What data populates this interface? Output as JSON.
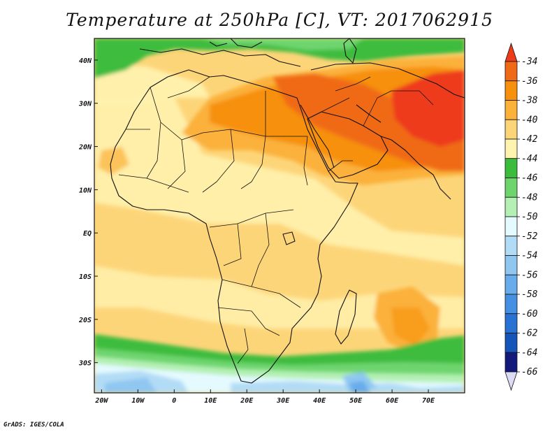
{
  "title": "Temperature at 250hPa [C], VT: 2017062915",
  "credit": "GrADS: IGES/COLA",
  "map": {
    "lon_range": [
      -22,
      80
    ],
    "lat_range": [
      -37,
      45
    ],
    "lon_ticks": [
      {
        "lon": -20,
        "label": "20W"
      },
      {
        "lon": -10,
        "label": "10W"
      },
      {
        "lon": 0,
        "label": "0"
      },
      {
        "lon": 10,
        "label": "10E"
      },
      {
        "lon": 20,
        "label": "20E"
      },
      {
        "lon": 30,
        "label": "30E"
      },
      {
        "lon": 40,
        "label": "40E"
      },
      {
        "lon": 50,
        "label": "50E"
      },
      {
        "lon": 60,
        "label": "60E"
      },
      {
        "lon": 70,
        "label": "70E"
      }
    ],
    "lat_ticks": [
      {
        "lat": 40,
        "label": "40N"
      },
      {
        "lat": 30,
        "label": "30N"
      },
      {
        "lat": 20,
        "label": "20N"
      },
      {
        "lat": 10,
        "label": "10N"
      },
      {
        "lat": 0,
        "label": "EQ"
      },
      {
        "lat": -10,
        "label": "10S"
      },
      {
        "lat": -20,
        "label": "20S"
      },
      {
        "lat": -30,
        "label": "30S"
      }
    ]
  },
  "colorbar": {
    "levels": [
      -34,
      -36,
      -38,
      -40,
      -42,
      -44,
      -46,
      -48,
      -50,
      -52,
      -54,
      -56,
      -58,
      -60,
      -62,
      -64,
      -66
    ],
    "colors": [
      "#ee3b1a",
      "#f06a16",
      "#f7900d",
      "#fbb13a",
      "#fdd579",
      "#fff3b0",
      "#3cbc3c",
      "#6ed56e",
      "#b4f0b4",
      "#e4faff",
      "#b2dcf5",
      "#8fc7f1",
      "#68acec",
      "#4590e2",
      "#2872d3",
      "#1554b8",
      "#12197a",
      "#dcdcf5"
    ]
  }
}
